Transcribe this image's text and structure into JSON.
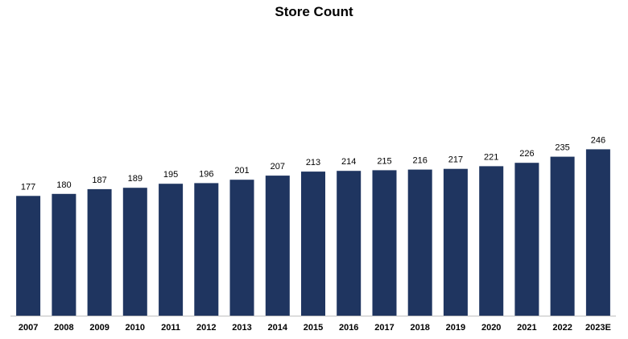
{
  "chart_data": {
    "type": "bar",
    "title": "Store Count",
    "categories": [
      "2007",
      "2008",
      "2009",
      "2010",
      "2011",
      "2012",
      "2013",
      "2014",
      "2015",
      "2016",
      "2017",
      "2018",
      "2019",
      "2020",
      "2021",
      "2022",
      "2023E"
    ],
    "values": [
      177,
      180,
      187,
      189,
      195,
      196,
      201,
      207,
      213,
      214,
      215,
      216,
      217,
      221,
      226,
      235,
      246
    ],
    "xlabel": "",
    "ylabel": "",
    "ylim": [
      0,
      250
    ],
    "grid": false,
    "legend": "none",
    "bar_color": "#1f3560",
    "axis_color": "#bfbfbf"
  }
}
